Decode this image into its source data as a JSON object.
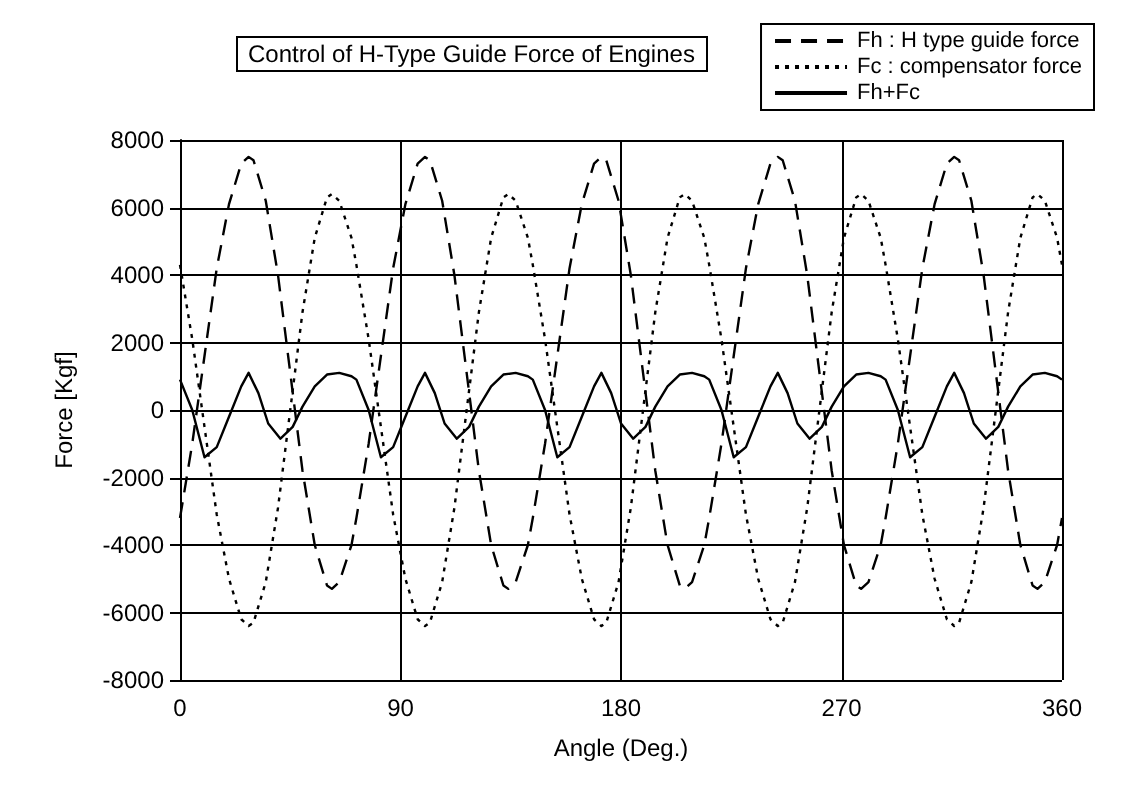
{
  "chart_data": {
    "type": "line",
    "title": "Control of H-Type Guide Force of Engines",
    "xlabel": "Angle (Deg.)",
    "ylabel": "Force [Kgf]",
    "xlim": [
      0,
      360
    ],
    "xticks": [
      0,
      90,
      180,
      270,
      360
    ],
    "ylim": [
      -8000,
      8000
    ],
    "yticks": [
      -8000,
      -6000,
      -4000,
      -2000,
      0,
      2000,
      4000,
      6000,
      8000
    ],
    "grid": true,
    "legend": "top right",
    "marker": "none",
    "series": [
      {
        "name": "Fh : H type guide force",
        "color": "#000000",
        "line_style": "dashed",
        "x": [
          0,
          5,
          10,
          15,
          20,
          25,
          28,
          30,
          35,
          40,
          45,
          50,
          55,
          60,
          62,
          65,
          70,
          72,
          77,
          82,
          87,
          92,
          97,
          100,
          102,
          107,
          112,
          117,
          122,
          127,
          132,
          134,
          137,
          142,
          144,
          149,
          154,
          159,
          164,
          169,
          172,
          174,
          179,
          184,
          189,
          194,
          199,
          204,
          206,
          209,
          214,
          216,
          221,
          226,
          231,
          236,
          241,
          244,
          246,
          251,
          256,
          261,
          266,
          271,
          276,
          278,
          281,
          286,
          288,
          293,
          298,
          303,
          308,
          313,
          316,
          318,
          323,
          328,
          333,
          338,
          343,
          348,
          350,
          353,
          358,
          360
        ],
        "values": [
          -3200,
          -1000,
          1600,
          4200,
          6100,
          7300,
          7500,
          7400,
          6200,
          4000,
          1100,
          -1800,
          -4000,
          -5200,
          -5300,
          -5100,
          -4000,
          -3200,
          -1000,
          1600,
          4200,
          6100,
          7300,
          7500,
          7400,
          6200,
          4000,
          1100,
          -1800,
          -4000,
          -5200,
          -5300,
          -5100,
          -4000,
          -3200,
          -1000,
          1600,
          4200,
          6100,
          7300,
          7500,
          7400,
          6200,
          4000,
          1100,
          -1800,
          -4000,
          -5200,
          -5300,
          -5100,
          -4000,
          -3200,
          -1000,
          1600,
          4200,
          6100,
          7300,
          7500,
          7400,
          6200,
          4000,
          1100,
          -1800,
          -4000,
          -5200,
          -5300,
          -5100,
          -4000,
          -3200,
          -1000,
          1600,
          4200,
          6100,
          7300,
          7500,
          7400,
          6200,
          4000,
          1100,
          -1800,
          -4000,
          -5200,
          -5300,
          -5100,
          -4000,
          -3200
        ]
      },
      {
        "name": "Fc : compensator force",
        "color": "#000000",
        "line_style": "dotted",
        "x": [
          0,
          5,
          10,
          15,
          20,
          25,
          28,
          30,
          35,
          40,
          45,
          50,
          55,
          60,
          62,
          65,
          70,
          72,
          77,
          82,
          87,
          92,
          97,
          100,
          102,
          107,
          112,
          117,
          122,
          127,
          132,
          134,
          137,
          142,
          144,
          149,
          154,
          159,
          164,
          169,
          172,
          174,
          179,
          184,
          189,
          194,
          199,
          204,
          206,
          209,
          214,
          216,
          221,
          226,
          231,
          236,
          241,
          244,
          246,
          251,
          256,
          261,
          266,
          271,
          276,
          278,
          281,
          286,
          288,
          293,
          298,
          303,
          308,
          313,
          316,
          318,
          323,
          328,
          333,
          338,
          343,
          348,
          350,
          353,
          358,
          360
        ],
        "values": [
          4300,
          2100,
          -500,
          -3100,
          -5000,
          -6200,
          -6400,
          -6300,
          -5100,
          -2900,
          0,
          2900,
          5100,
          6300,
          6400,
          6200,
          5100,
          4300,
          2100,
          -500,
          -3100,
          -5000,
          -6200,
          -6400,
          -6300,
          -5100,
          -2900,
          0,
          2900,
          5100,
          6300,
          6400,
          6200,
          5100,
          4300,
          2100,
          -500,
          -3100,
          -5000,
          -6200,
          -6400,
          -6300,
          -5100,
          -2900,
          0,
          2900,
          5100,
          6300,
          6400,
          6200,
          5100,
          4300,
          2100,
          -500,
          -3100,
          -5000,
          -6200,
          -6400,
          -6300,
          -5100,
          -2900,
          0,
          2900,
          5100,
          6300,
          6400,
          6200,
          5100,
          4300,
          2100,
          -500,
          -3100,
          -5000,
          -6200,
          -6400,
          -6300,
          -5100,
          -2900,
          0,
          2900,
          5100,
          6300,
          6400,
          6200,
          5100,
          4300
        ]
      },
      {
        "name": "Fh+Fc",
        "color": "#000000",
        "line_style": "solid",
        "x": [
          0,
          5,
          10,
          15,
          20,
          25,
          28,
          32,
          36,
          41,
          46,
          50,
          55,
          60,
          65,
          70,
          72,
          77,
          82,
          87,
          92,
          97,
          100,
          104,
          108,
          113,
          118,
          122,
          127,
          132,
          137,
          142,
          144,
          149,
          154,
          159,
          164,
          169,
          172,
          176,
          180,
          185,
          190,
          194,
          199,
          204,
          209,
          214,
          216,
          221,
          226,
          231,
          236,
          241,
          244,
          248,
          252,
          257,
          262,
          266,
          271,
          276,
          281,
          286,
          288,
          293,
          298,
          303,
          308,
          313,
          316,
          320,
          324,
          329,
          334,
          338,
          343,
          348,
          353,
          358,
          360
        ],
        "values": [
          900,
          0,
          -1400,
          -1100,
          -200,
          700,
          1100,
          500,
          -400,
          -850,
          -500,
          100,
          700,
          1050,
          1100,
          1000,
          900,
          0,
          -1400,
          -1100,
          -200,
          700,
          1100,
          500,
          -400,
          -850,
          -500,
          100,
          700,
          1050,
          1100,
          1000,
          900,
          0,
          -1400,
          -1100,
          -200,
          700,
          1100,
          500,
          -400,
          -850,
          -500,
          100,
          700,
          1050,
          1100,
          1000,
          900,
          0,
          -1400,
          -1100,
          -200,
          700,
          1100,
          500,
          -400,
          -850,
          -500,
          100,
          700,
          1050,
          1100,
          1000,
          900,
          0,
          -1400,
          -1100,
          -200,
          700,
          1100,
          500,
          -400,
          -850,
          -500,
          100,
          700,
          1050,
          1100,
          1000,
          900
        ]
      }
    ]
  }
}
